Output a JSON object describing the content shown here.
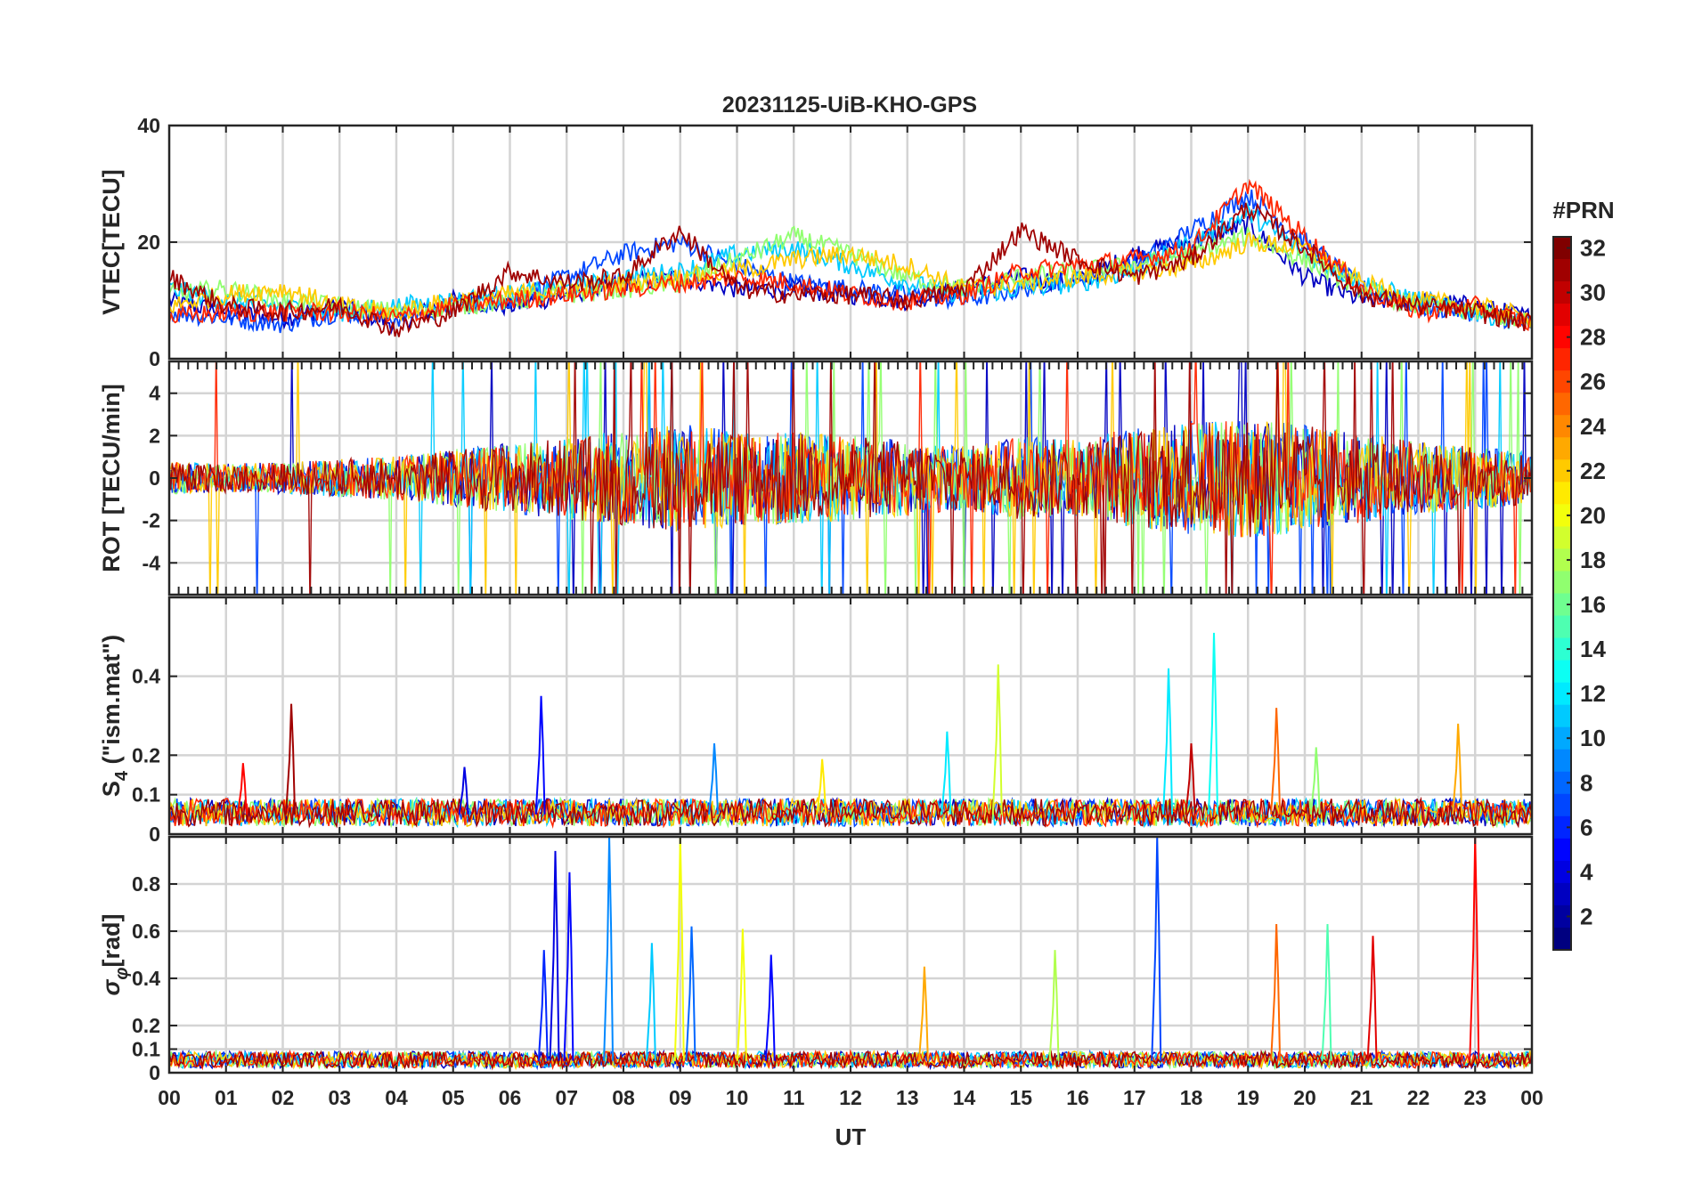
{
  "chart_data": {
    "type": "line",
    "title": "20231125-UiB-KHO-GPS",
    "xlabel": "UT",
    "x_ticks": [
      "00",
      "01",
      "02",
      "03",
      "04",
      "05",
      "06",
      "07",
      "08",
      "09",
      "10",
      "11",
      "12",
      "13",
      "14",
      "15",
      "16",
      "17",
      "18",
      "19",
      "20",
      "21",
      "22",
      "23",
      "00"
    ],
    "xlim": [
      0,
      24
    ],
    "colorbar": {
      "label": "#PRN",
      "ticks": [
        "2",
        "4",
        "6",
        "8",
        "10",
        "12",
        "14",
        "16",
        "18",
        "20",
        "22",
        "24",
        "26",
        "28",
        "30",
        "32"
      ],
      "range": [
        1,
        32
      ]
    },
    "panels": [
      {
        "id": "vtec",
        "ylabel": "VTEC[TECU]",
        "ylim": [
          0,
          40
        ],
        "yticks": [
          0,
          20,
          40
        ],
        "ytick_labels": [
          "0",
          "20",
          "40"
        ],
        "series": [
          {
            "name": "PRN 3",
            "prn": 3,
            "x": [
              0,
              1,
              2,
              3,
              4,
              5,
              6,
              7,
              8,
              9,
              10,
              11,
              12,
              13,
              14,
              15,
              16,
              17,
              18,
              19,
              20,
              21,
              22,
              23,
              24
            ],
            "values": [
              10,
              8,
              7,
              9,
              6,
              10,
              9,
              11,
              13,
              14,
              12,
              12,
              11,
              10,
              12,
              14,
              13,
              18,
              20,
              23,
              14,
              10,
              10,
              9,
              7
            ]
          },
          {
            "name": "PRN 7",
            "prn": 7,
            "x": [
              0,
              1,
              2,
              3,
              4,
              5,
              6,
              7,
              8,
              9,
              10,
              11,
              12,
              13,
              14,
              15,
              16,
              17,
              18,
              19,
              20,
              21,
              22,
              23,
              24
            ],
            "values": [
              8,
              7,
              6,
              8,
              7,
              9,
              10,
              14,
              18,
              20,
              16,
              13,
              12,
              11,
              10,
              12,
              14,
              16,
              22,
              28,
              20,
              12,
              9,
              8,
              6
            ]
          },
          {
            "name": "PRN 11",
            "prn": 11,
            "x": [
              0,
              1,
              2,
              3,
              4,
              5,
              6,
              7,
              8,
              9,
              10,
              11,
              12,
              13,
              14,
              15,
              16,
              17,
              18,
              19,
              20,
              21,
              22,
              23,
              24
            ],
            "values": [
              12,
              10,
              9,
              8,
              9,
              10,
              11,
              12,
              14,
              15,
              18,
              19,
              16,
              13,
              11,
              12,
              13,
              15,
              20,
              25,
              18,
              13,
              10,
              8,
              6
            ]
          },
          {
            "name": "PRN 17",
            "prn": 17,
            "x": [
              0,
              1,
              2,
              3,
              4,
              5,
              6,
              7,
              8,
              9,
              10,
              11,
              12,
              13,
              14,
              15,
              16,
              17,
              18,
              19,
              20,
              21,
              22,
              23,
              24
            ],
            "values": [
              11,
              12,
              10,
              9,
              8,
              9,
              10,
              11,
              12,
              13,
              17,
              21,
              18,
              14,
              12,
              14,
              15,
              16,
              18,
              21,
              17,
              12,
              9,
              8,
              6
            ]
          },
          {
            "name": "PRN 22",
            "prn": 22,
            "x": [
              0,
              1,
              2,
              3,
              4,
              5,
              6,
              7,
              8,
              9,
              10,
              11,
              12,
              13,
              14,
              15,
              16,
              17,
              18,
              19,
              20,
              21,
              22,
              23,
              24
            ],
            "values": [
              9,
              11,
              12,
              9,
              8,
              10,
              11,
              12,
              13,
              14,
              15,
              17,
              18,
              16,
              12,
              13,
              14,
              15,
              16,
              20,
              19,
              13,
              10,
              9,
              7
            ]
          },
          {
            "name": "PRN 27",
            "prn": 27,
            "x": [
              0,
              1,
              2,
              3,
              4,
              5,
              6,
              7,
              8,
              9,
              10,
              11,
              12,
              13,
              14,
              15,
              16,
              17,
              18,
              19,
              20,
              21,
              22,
              23,
              24
            ],
            "values": [
              7,
              8,
              8,
              8,
              7,
              9,
              10,
              11,
              12,
              13,
              14,
              13,
              11,
              10,
              11,
              15,
              16,
              17,
              19,
              30,
              21,
              12,
              8,
              9,
              6
            ]
          },
          {
            "name": "PRN 31",
            "prn": 31,
            "x": [
              0,
              1,
              2,
              3,
              4,
              5,
              6,
              7,
              8,
              9,
              10,
              11,
              12,
              13,
              14,
              15,
              16,
              17,
              18,
              19,
              20,
              21,
              22,
              23,
              24
            ],
            "values": [
              14,
              9,
              8,
              9,
              5,
              8,
              15,
              13,
              14,
              22,
              12,
              11,
              11,
              10,
              12,
              22,
              17,
              14,
              17,
              26,
              19,
              11,
              9,
              8,
              6
            ]
          }
        ]
      },
      {
        "id": "rot",
        "ylabel": "ROT [TECU/min]",
        "ylim": [
          -5.5,
          5.5
        ],
        "yticks": [
          -4,
          -2,
          0,
          2,
          4
        ],
        "ytick_labels": [
          "-4",
          "-2",
          "0",
          "2",
          "4"
        ],
        "envelope": {
          "x": [
            0,
            1,
            2,
            3,
            4,
            5,
            6,
            7,
            8,
            9,
            10,
            11,
            12,
            13,
            14,
            15,
            16,
            17,
            18,
            19,
            20,
            21,
            22,
            23,
            24
          ],
          "amplitude": [
            1.0,
            0.9,
            1.0,
            1.2,
            1.4,
            1.8,
            2.2,
            2.6,
            3.0,
            3.4,
            3.0,
            2.9,
            2.7,
            2.4,
            2.0,
            2.6,
            2.4,
            3.2,
            3.6,
            3.8,
            3.4,
            2.8,
            2.3,
            2.0,
            1.6
          ]
        },
        "series_prns": [
          3,
          7,
          11,
          17,
          22,
          27,
          31
        ]
      },
      {
        "id": "s4",
        "ylabel": "S4 (\"ism.mat\")",
        "ylabel_main": "S",
        "ylabel_sub": "4",
        "ylabel_rest": " (\"ism.mat\")",
        "ylim": [
          0,
          0.6
        ],
        "yticks": [
          0,
          0.1,
          0.2,
          0.4
        ],
        "ytick_labels": [
          "0",
          "0.1",
          "0.2",
          "0.4"
        ],
        "baseline": 0.05,
        "spikes": [
          {
            "x": 1.3,
            "value": 0.18,
            "prn": 28
          },
          {
            "x": 2.15,
            "value": 0.33,
            "prn": 31
          },
          {
            "x": 5.2,
            "value": 0.17,
            "prn": 4
          },
          {
            "x": 6.55,
            "value": 0.35,
            "prn": 5
          },
          {
            "x": 9.6,
            "value": 0.23,
            "prn": 9
          },
          {
            "x": 11.5,
            "value": 0.19,
            "prn": 21
          },
          {
            "x": 13.7,
            "value": 0.26,
            "prn": 12
          },
          {
            "x": 14.6,
            "value": 0.43,
            "prn": 19
          },
          {
            "x": 17.6,
            "value": 0.42,
            "prn": 12
          },
          {
            "x": 18.0,
            "value": 0.23,
            "prn": 30
          },
          {
            "x": 18.4,
            "value": 0.51,
            "prn": 13
          },
          {
            "x": 19.5,
            "value": 0.32,
            "prn": 25
          },
          {
            "x": 20.2,
            "value": 0.22,
            "prn": 17
          },
          {
            "x": 22.7,
            "value": 0.28,
            "prn": 23
          }
        ]
      },
      {
        "id": "sigma_phi",
        "ylabel": "σφ[rad]",
        "ylabel_main": "σ",
        "ylabel_sub": "φ",
        "ylabel_rest": "[rad]",
        "ylim": [
          0,
          1.0
        ],
        "yticks": [
          0,
          0.1,
          0.2,
          0.4,
          0.6,
          0.8
        ],
        "ytick_labels": [
          "0",
          "0.1",
          "0.2",
          "0.4",
          "0.6",
          "0.8"
        ],
        "baseline": 0.05,
        "spikes": [
          {
            "x": 6.6,
            "value": 0.52,
            "prn": 6
          },
          {
            "x": 6.8,
            "value": 0.94,
            "prn": 4
          },
          {
            "x": 7.05,
            "value": 0.85,
            "prn": 5
          },
          {
            "x": 7.75,
            "value": 1.0,
            "prn": 9
          },
          {
            "x": 8.5,
            "value": 0.55,
            "prn": 11
          },
          {
            "x": 9.0,
            "value": 1.0,
            "prn": 20
          },
          {
            "x": 9.2,
            "value": 0.62,
            "prn": 8
          },
          {
            "x": 10.1,
            "value": 0.61,
            "prn": 20
          },
          {
            "x": 10.6,
            "value": 0.5,
            "prn": 5
          },
          {
            "x": 13.3,
            "value": 0.45,
            "prn": 23
          },
          {
            "x": 15.6,
            "value": 0.52,
            "prn": 18
          },
          {
            "x": 17.4,
            "value": 1.0,
            "prn": 7
          },
          {
            "x": 19.5,
            "value": 0.63,
            "prn": 25
          },
          {
            "x": 20.4,
            "value": 0.63,
            "prn": 15
          },
          {
            "x": 21.2,
            "value": 0.58,
            "prn": 29
          },
          {
            "x": 23.0,
            "value": 1.0,
            "prn": 28
          }
        ]
      }
    ]
  }
}
